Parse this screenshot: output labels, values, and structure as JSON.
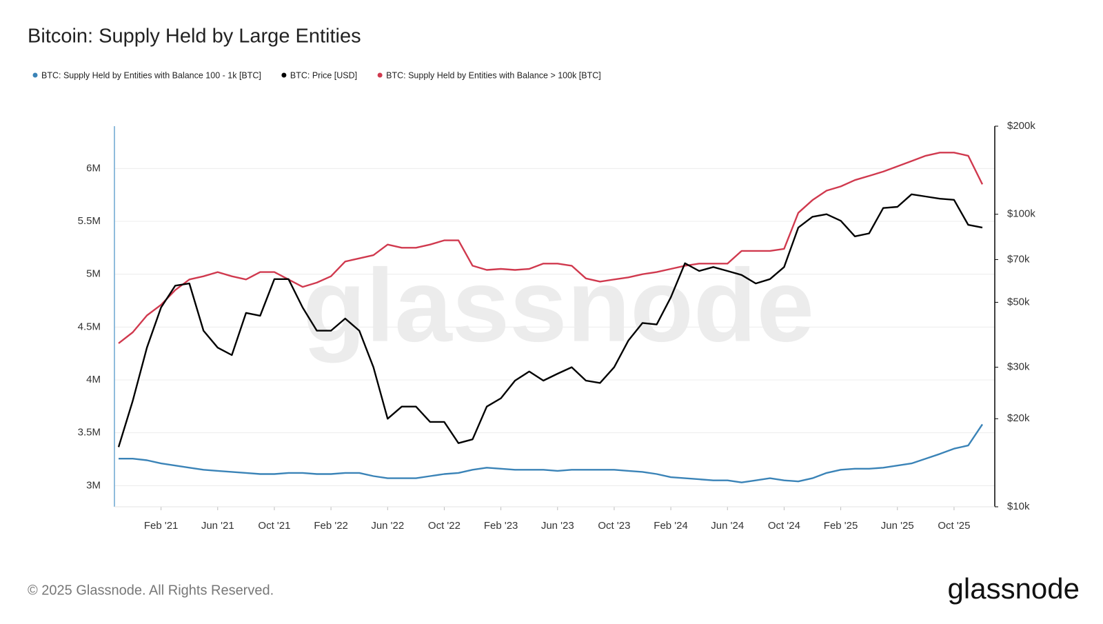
{
  "chart_data": {
    "type": "line",
    "title": "Bitcoin: Supply Held by Large Entities",
    "watermark": "glassnode",
    "copyright": "© 2025 Glassnode. All Rights Reserved.",
    "logo": "glassnode",
    "x": [
      "2020-11",
      "2020-12",
      "2021-01",
      "2021-02",
      "2021-03",
      "2021-04",
      "2021-05",
      "2021-06",
      "2021-07",
      "2021-08",
      "2021-09",
      "2021-10",
      "2021-11",
      "2021-12",
      "2022-01",
      "2022-02",
      "2022-03",
      "2022-04",
      "2022-05",
      "2022-06",
      "2022-07",
      "2022-08",
      "2022-09",
      "2022-10",
      "2022-11",
      "2022-12",
      "2023-01",
      "2023-02",
      "2023-03",
      "2023-04",
      "2023-05",
      "2023-06",
      "2023-07",
      "2023-08",
      "2023-09",
      "2023-10",
      "2023-11",
      "2023-12",
      "2024-01",
      "2024-02",
      "2024-03",
      "2024-04",
      "2024-05",
      "2024-06",
      "2024-07",
      "2024-08",
      "2024-09",
      "2024-10",
      "2024-11",
      "2024-12",
      "2025-01",
      "2025-02",
      "2025-03",
      "2025-04",
      "2025-05",
      "2025-06",
      "2025-07",
      "2025-08",
      "2025-09",
      "2025-10",
      "2025-11",
      "2025-12"
    ],
    "xlim": [
      "2020-11",
      "2025-12"
    ],
    "xticks": [
      {
        "value": "2021-02",
        "label": "Feb '21"
      },
      {
        "value": "2021-06",
        "label": "Jun '21"
      },
      {
        "value": "2021-10",
        "label": "Oct '21"
      },
      {
        "value": "2022-02",
        "label": "Feb '22"
      },
      {
        "value": "2022-06",
        "label": "Jun '22"
      },
      {
        "value": "2022-10",
        "label": "Oct '22"
      },
      {
        "value": "2023-02",
        "label": "Feb '23"
      },
      {
        "value": "2023-06",
        "label": "Jun '23"
      },
      {
        "value": "2023-10",
        "label": "Oct '23"
      },
      {
        "value": "2024-02",
        "label": "Feb '24"
      },
      {
        "value": "2024-06",
        "label": "Jun '24"
      },
      {
        "value": "2024-10",
        "label": "Oct '24"
      },
      {
        "value": "2025-02",
        "label": "Feb '25"
      },
      {
        "value": "2025-06",
        "label": "Jun '25"
      },
      {
        "value": "2025-10",
        "label": "Oct '25"
      }
    ],
    "ylim": [
      2800000,
      6400000
    ],
    "yticks": [
      {
        "value": 3000000,
        "label": "3M"
      },
      {
        "value": 3500000,
        "label": "3.5M"
      },
      {
        "value": 4000000,
        "label": "4M"
      },
      {
        "value": 4500000,
        "label": "4.5M"
      },
      {
        "value": 5000000,
        "label": "5M"
      },
      {
        "value": 5500000,
        "label": "5.5M"
      },
      {
        "value": 6000000,
        "label": "6M"
      }
    ],
    "y2lim": [
      10000,
      200000
    ],
    "y2scale": "log",
    "y2ticks": [
      {
        "value": 10000,
        "label": "$10k"
      },
      {
        "value": 20000,
        "label": "$20k"
      },
      {
        "value": 30000,
        "label": "$30k"
      },
      {
        "value": 50000,
        "label": "$50k"
      },
      {
        "value": 70000,
        "label": "$70k"
      },
      {
        "value": 100000,
        "label": "$100k"
      },
      {
        "value": 200000,
        "label": "$200k"
      }
    ],
    "grid": true,
    "legend": "top-left",
    "series": [
      {
        "name": "BTC: Supply Held by Entities with Balance 100 - 1k [BTC]",
        "color": "#3a83b7",
        "axis": "y",
        "values": [
          3255000,
          3255000,
          3240000,
          3210000,
          3190000,
          3170000,
          3150000,
          3140000,
          3130000,
          3120000,
          3110000,
          3110000,
          3120000,
          3120000,
          3110000,
          3110000,
          3120000,
          3120000,
          3090000,
          3070000,
          3070000,
          3070000,
          3090000,
          3110000,
          3120000,
          3150000,
          3170000,
          3160000,
          3150000,
          3150000,
          3150000,
          3140000,
          3150000,
          3150000,
          3150000,
          3150000,
          3140000,
          3130000,
          3110000,
          3080000,
          3070000,
          3060000,
          3050000,
          3050000,
          3030000,
          3050000,
          3070000,
          3050000,
          3040000,
          3070000,
          3120000,
          3150000,
          3160000,
          3160000,
          3170000,
          3190000,
          3210000,
          3255000,
          3300000,
          3350000,
          3380000,
          3580000
        ]
      },
      {
        "name": "BTC: Price [USD]",
        "color": "#000000",
        "axis": "y2",
        "values": [
          16000,
          23000,
          35000,
          48000,
          57000,
          58000,
          40000,
          35000,
          33000,
          46000,
          45000,
          60000,
          60000,
          48000,
          40000,
          40000,
          44000,
          40000,
          30000,
          20000,
          22000,
          22000,
          19500,
          19500,
          16500,
          17000,
          22000,
          23500,
          27000,
          29000,
          27000,
          28500,
          30000,
          27000,
          26500,
          30000,
          37000,
          42500,
          42000,
          52000,
          68000,
          64000,
          66000,
          64000,
          62000,
          58000,
          60000,
          66000,
          90000,
          98000,
          100000,
          95000,
          84000,
          86000,
          105000,
          106000,
          117000,
          115000,
          113000,
          112000,
          92000,
          90000
        ]
      },
      {
        "name": "BTC: Supply Held by Entities with Balance > 100k [BTC]",
        "color": "#d0394e",
        "axis": "y",
        "values": [
          4346000,
          4450000,
          4610000,
          4710000,
          4850000,
          4950000,
          4980000,
          5020000,
          4980000,
          4950000,
          5020000,
          5020000,
          4950000,
          4880000,
          4920000,
          4980000,
          5120000,
          5150000,
          5180000,
          5280000,
          5250000,
          5250000,
          5280000,
          5320000,
          5320000,
          5080000,
          5040000,
          5050000,
          5040000,
          5050000,
          5100000,
          5100000,
          5080000,
          4960000,
          4930000,
          4950000,
          4970000,
          5000000,
          5020000,
          5050000,
          5080000,
          5100000,
          5100000,
          5100000,
          5220000,
          5220000,
          5220000,
          5240000,
          5580000,
          5700000,
          5790000,
          5830000,
          5890000,
          5930000,
          5970000,
          6020000,
          6070000,
          6120000,
          6150000,
          6150000,
          6120000,
          5850000
        ]
      }
    ]
  }
}
